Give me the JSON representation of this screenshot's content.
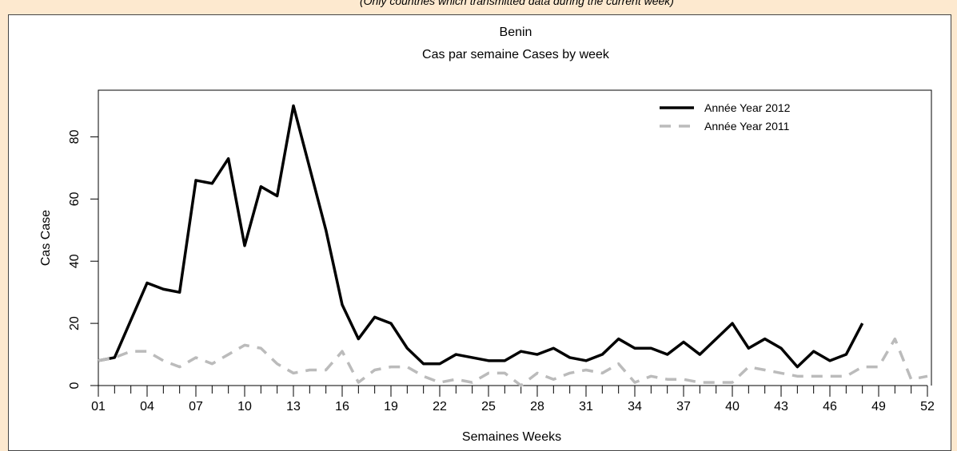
{
  "header_note": "(Only countries which transmitted data during the current week)",
  "chart_data": {
    "type": "line",
    "title": "Benin",
    "subtitle": "Cas par semaine Cases by week",
    "x_label": "Semaines Weeks",
    "y_label": "Cas Case",
    "x": [
      1,
      2,
      3,
      4,
      5,
      6,
      7,
      8,
      9,
      10,
      11,
      12,
      13,
      14,
      15,
      16,
      17,
      18,
      19,
      20,
      21,
      22,
      23,
      24,
      25,
      26,
      27,
      28,
      29,
      30,
      31,
      32,
      33,
      34,
      35,
      36,
      37,
      38,
      39,
      40,
      41,
      42,
      43,
      44,
      45,
      46,
      47,
      48,
      49,
      50,
      51,
      52
    ],
    "series": [
      {
        "name": "Année Year 2012",
        "color": "#000000",
        "dash": false,
        "values": [
          8,
          9,
          21,
          33,
          31,
          30,
          66,
          65,
          73,
          45,
          64,
          61,
          90,
          70,
          50,
          26,
          15,
          22,
          20,
          12,
          7,
          7,
          10,
          9,
          8,
          8,
          11,
          10,
          12,
          9,
          8,
          10,
          15,
          12,
          12,
          10,
          14,
          10,
          15,
          20,
          12,
          15,
          12,
          6,
          11,
          8,
          10,
          20,
          null,
          null,
          null,
          null
        ]
      },
      {
        "name": "Année Year 2011",
        "color": "#bbbbbb",
        "dash": true,
        "values": [
          8,
          9,
          11,
          11,
          8,
          6,
          9,
          7,
          10,
          13,
          12,
          7,
          4,
          5,
          5,
          11,
          1,
          5,
          6,
          6,
          3,
          1,
          2,
          1,
          4,
          4,
          0,
          4,
          2,
          4,
          5,
          4,
          7,
          1,
          3,
          2,
          2,
          1,
          1,
          1,
          6,
          5,
          4,
          3,
          3,
          3,
          3,
          6,
          6,
          15,
          2,
          3
        ]
      }
    ],
    "xlim": [
      1,
      52
    ],
    "ylim": [
      0,
      95
    ],
    "xticks": [
      {
        "value": 1,
        "label": "01"
      },
      {
        "value": 4,
        "label": "04"
      },
      {
        "value": 7,
        "label": "07"
      },
      10,
      13,
      16,
      19,
      22,
      25,
      28,
      31,
      34,
      37,
      40,
      43,
      46,
      49,
      52
    ],
    "xminor_ticks": [
      1,
      2,
      3,
      4,
      5,
      6,
      7,
      8,
      9,
      10,
      11,
      12,
      13,
      14,
      15,
      16,
      17,
      18,
      19,
      20,
      21,
      22,
      23,
      24,
      25,
      26,
      27,
      28,
      29,
      30,
      31,
      32,
      33,
      34,
      35,
      36,
      37,
      38,
      39,
      40,
      41,
      42,
      43,
      44,
      45,
      46,
      47,
      48,
      49,
      50,
      51,
      52
    ],
    "yticks": [
      0,
      20,
      40,
      60,
      80
    ],
    "grid": false,
    "legend": "top-right"
  }
}
